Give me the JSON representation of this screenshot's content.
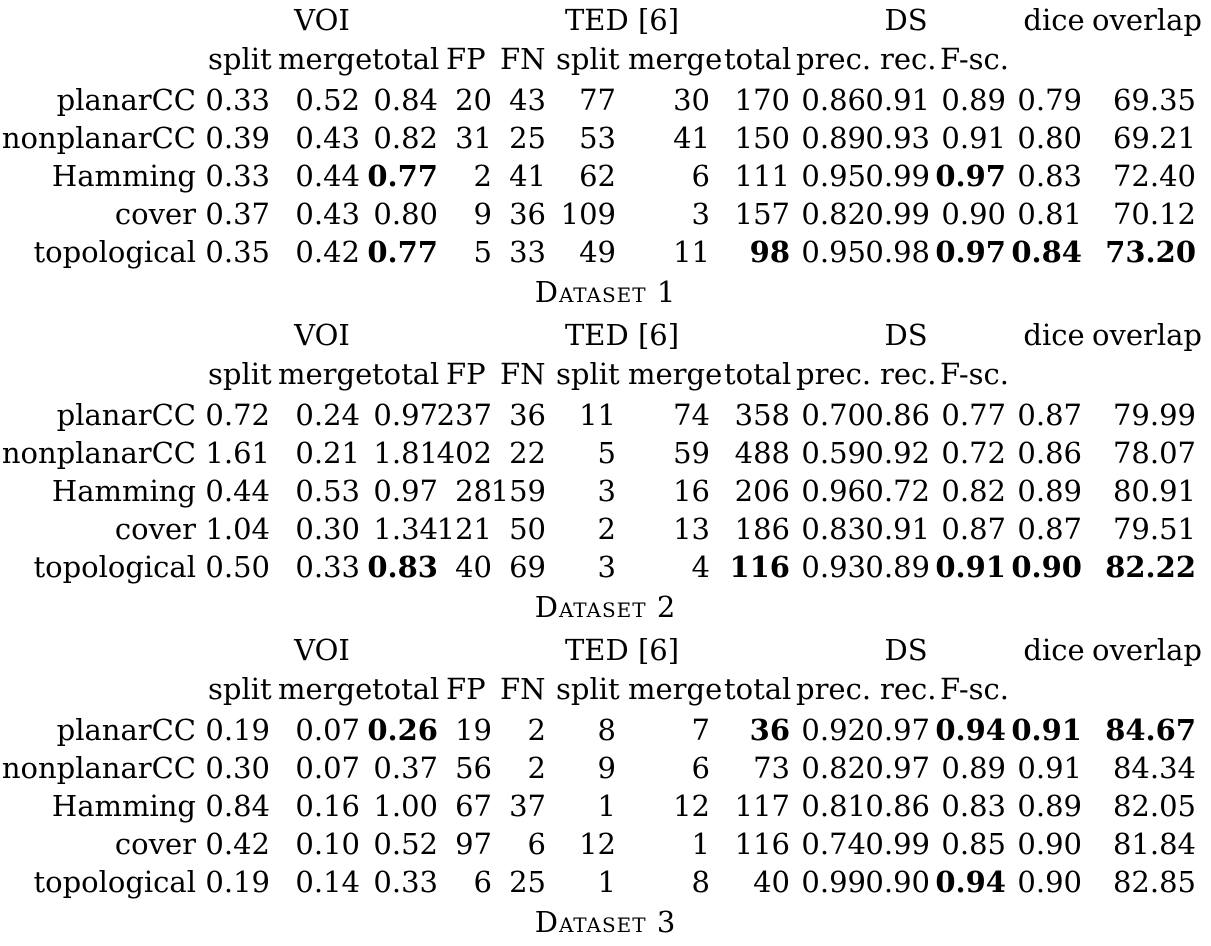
{
  "header": {
    "voi": "VOI",
    "ted": "TED [6]",
    "ds": "DS",
    "dice": "dice",
    "overlap": "overlap"
  },
  "subheader": [
    "split",
    "merge",
    "total",
    "FP",
    "FN",
    "split",
    "merge",
    "total",
    "prec.",
    "rec.",
    "F-sc."
  ],
  "tables": [
    {
      "caption": "Dataset 1",
      "rows": [
        {
          "name": "planarCC",
          "values": [
            "0.33",
            "0.52",
            "0.84",
            "20",
            "43",
            "77",
            "30",
            "170",
            "0.86",
            "0.91",
            "0.89",
            "0.79",
            "69.35"
          ],
          "bold": []
        },
        {
          "name": "nonplanarCC",
          "values": [
            "0.39",
            "0.43",
            "0.82",
            "31",
            "25",
            "53",
            "41",
            "150",
            "0.89",
            "0.93",
            "0.91",
            "0.80",
            "69.21"
          ],
          "bold": []
        },
        {
          "name": "Hamming",
          "values": [
            "0.33",
            "0.44",
            "0.77",
            "2",
            "41",
            "62",
            "6",
            "111",
            "0.95",
            "0.99",
            "0.97",
            "0.83",
            "72.40"
          ],
          "bold": [
            2,
            10
          ]
        },
        {
          "name": "cover",
          "values": [
            "0.37",
            "0.43",
            "0.80",
            "9",
            "36",
            "109",
            "3",
            "157",
            "0.82",
            "0.99",
            "0.90",
            "0.81",
            "70.12"
          ],
          "bold": []
        },
        {
          "name": "topological",
          "values": [
            "0.35",
            "0.42",
            "0.77",
            "5",
            "33",
            "49",
            "11",
            "98",
            "0.95",
            "0.98",
            "0.97",
            "0.84",
            "73.20"
          ],
          "bold": [
            2,
            7,
            10,
            11,
            12
          ]
        }
      ]
    },
    {
      "caption": "Dataset 2",
      "rows": [
        {
          "name": "planarCC",
          "values": [
            "0.72",
            "0.24",
            "0.97",
            "237",
            "36",
            "11",
            "74",
            "358",
            "0.70",
            "0.86",
            "0.77",
            "0.87",
            "79.99"
          ],
          "bold": []
        },
        {
          "name": "nonplanarCC",
          "values": [
            "1.61",
            "0.21",
            "1.81",
            "402",
            "22",
            "5",
            "59",
            "488",
            "0.59",
            "0.92",
            "0.72",
            "0.86",
            "78.07"
          ],
          "bold": []
        },
        {
          "name": "Hamming",
          "values": [
            "0.44",
            "0.53",
            "0.97",
            "28",
            "159",
            "3",
            "16",
            "206",
            "0.96",
            "0.72",
            "0.82",
            "0.89",
            "80.91"
          ],
          "bold": []
        },
        {
          "name": "cover",
          "values": [
            "1.04",
            "0.30",
            "1.34",
            "121",
            "50",
            "2",
            "13",
            "186",
            "0.83",
            "0.91",
            "0.87",
            "0.87",
            "79.51"
          ],
          "bold": []
        },
        {
          "name": "topological",
          "values": [
            "0.50",
            "0.33",
            "0.83",
            "40",
            "69",
            "3",
            "4",
            "116",
            "0.93",
            "0.89",
            "0.91",
            "0.90",
            "82.22"
          ],
          "bold": [
            2,
            7,
            10,
            11,
            12
          ]
        }
      ]
    },
    {
      "caption": "Dataset 3",
      "rows": [
        {
          "name": "planarCC",
          "values": [
            "0.19",
            "0.07",
            "0.26",
            "19",
            "2",
            "8",
            "7",
            "36",
            "0.92",
            "0.97",
            "0.94",
            "0.91",
            "84.67"
          ],
          "bold": [
            2,
            7,
            10,
            11,
            12
          ]
        },
        {
          "name": "nonplanarCC",
          "values": [
            "0.30",
            "0.07",
            "0.37",
            "56",
            "2",
            "9",
            "6",
            "73",
            "0.82",
            "0.97",
            "0.89",
            "0.91",
            "84.34"
          ],
          "bold": []
        },
        {
          "name": "Hamming",
          "values": [
            "0.84",
            "0.16",
            "1.00",
            "67",
            "37",
            "1",
            "12",
            "117",
            "0.81",
            "0.86",
            "0.83",
            "0.89",
            "82.05"
          ],
          "bold": []
        },
        {
          "name": "cover",
          "values": [
            "0.42",
            "0.10",
            "0.52",
            "97",
            "6",
            "12",
            "1",
            "116",
            "0.74",
            "0.99",
            "0.85",
            "0.90",
            "81.84"
          ],
          "bold": []
        },
        {
          "name": "topological",
          "values": [
            "0.19",
            "0.14",
            "0.33",
            "6",
            "25",
            "1",
            "8",
            "40",
            "0.99",
            "0.90",
            "0.94",
            "0.90",
            "82.85"
          ],
          "bold": [
            10
          ]
        }
      ]
    }
  ]
}
